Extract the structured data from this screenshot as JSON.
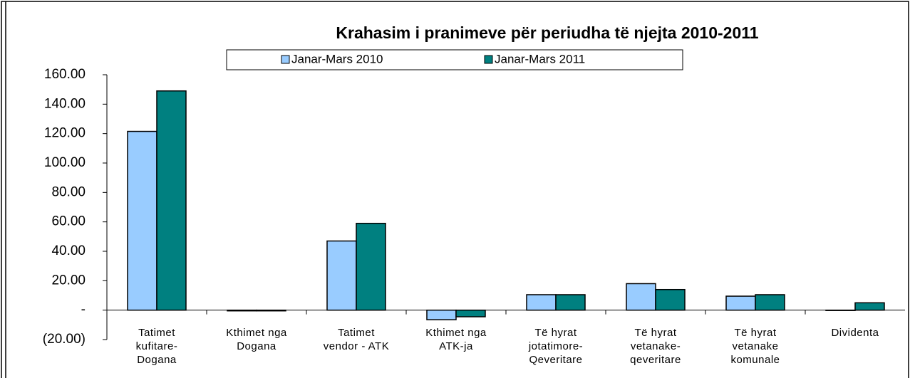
{
  "chart_data": {
    "type": "bar",
    "title": "Krahasim i pranimeve për periudha të njejta 2010-2011",
    "categories": [
      "Tatimet\nkufitare-\nDogana",
      "Kthimet nga\nDogana",
      "Tatimet\nvendor - ATK",
      "Kthimet nga\nATK-ja",
      "Të hyrat\njotatimore-\nQeveritare",
      "Të hyrat\nvetanake-\nqeveritare",
      "Të hyrat\nvetanake\nkomunale",
      "Dividenta"
    ],
    "series": [
      {
        "name": "Janar-Mars 2010",
        "color": "#99ccff",
        "values": [
          121.5,
          -0.5,
          47,
          -6.5,
          10.5,
          18,
          9.5,
          0
        ]
      },
      {
        "name": "Janar-Mars 2011",
        "color": "#008080",
        "values": [
          149,
          -0.5,
          59,
          -4.5,
          10.5,
          14,
          10.5,
          5
        ]
      }
    ],
    "ylim": [
      -20,
      160
    ],
    "yticks": [
      {
        "value": -20,
        "label": "(20.00)"
      },
      {
        "value": 0,
        "label": "-"
      },
      {
        "value": 20,
        "label": "20.00"
      },
      {
        "value": 40,
        "label": "40.00"
      },
      {
        "value": 60,
        "label": "60.00"
      },
      {
        "value": 80,
        "label": "80.00"
      },
      {
        "value": 100,
        "label": "100.00"
      },
      {
        "value": 120,
        "label": "120.00"
      },
      {
        "value": 140,
        "label": "140.00"
      },
      {
        "value": 160,
        "label": "160.00"
      }
    ],
    "legend": "top"
  }
}
